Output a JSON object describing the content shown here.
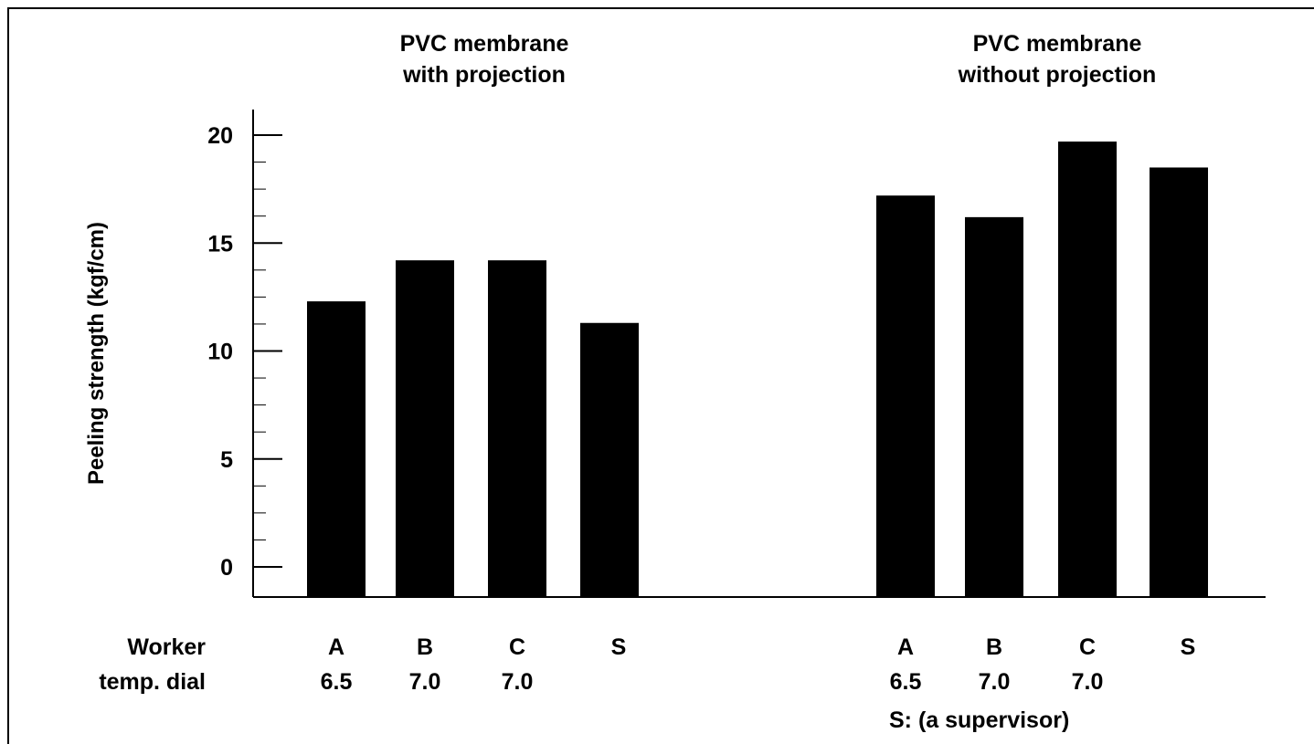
{
  "chart_data": {
    "type": "bar",
    "ylabel": "Peeling strength (kgf/cm)",
    "y_ticks": [
      "0",
      "5",
      "10",
      "15",
      "20"
    ],
    "groups": [
      {
        "title_lines": [
          "PVC membrane",
          "with projection"
        ],
        "workers": [
          "A",
          "B",
          "C",
          "S"
        ],
        "dials": [
          "6.5",
          "7.0",
          "7.0",
          ""
        ],
        "values": [
          12.3,
          14.2,
          14.2,
          11.3
        ]
      },
      {
        "title_lines": [
          "PVC membrane",
          "without projection"
        ],
        "workers": [
          "A",
          "B",
          "C",
          "S"
        ],
        "dials": [
          "6.5",
          "7.0",
          "7.0",
          ""
        ],
        "values": [
          17.2,
          16.2,
          19.7,
          18.5
        ]
      }
    ],
    "row_labels": {
      "worker": "Worker",
      "dial": "temp. dial"
    },
    "footnote": "S: (a supervisor)",
    "bar_color": "#000000"
  }
}
